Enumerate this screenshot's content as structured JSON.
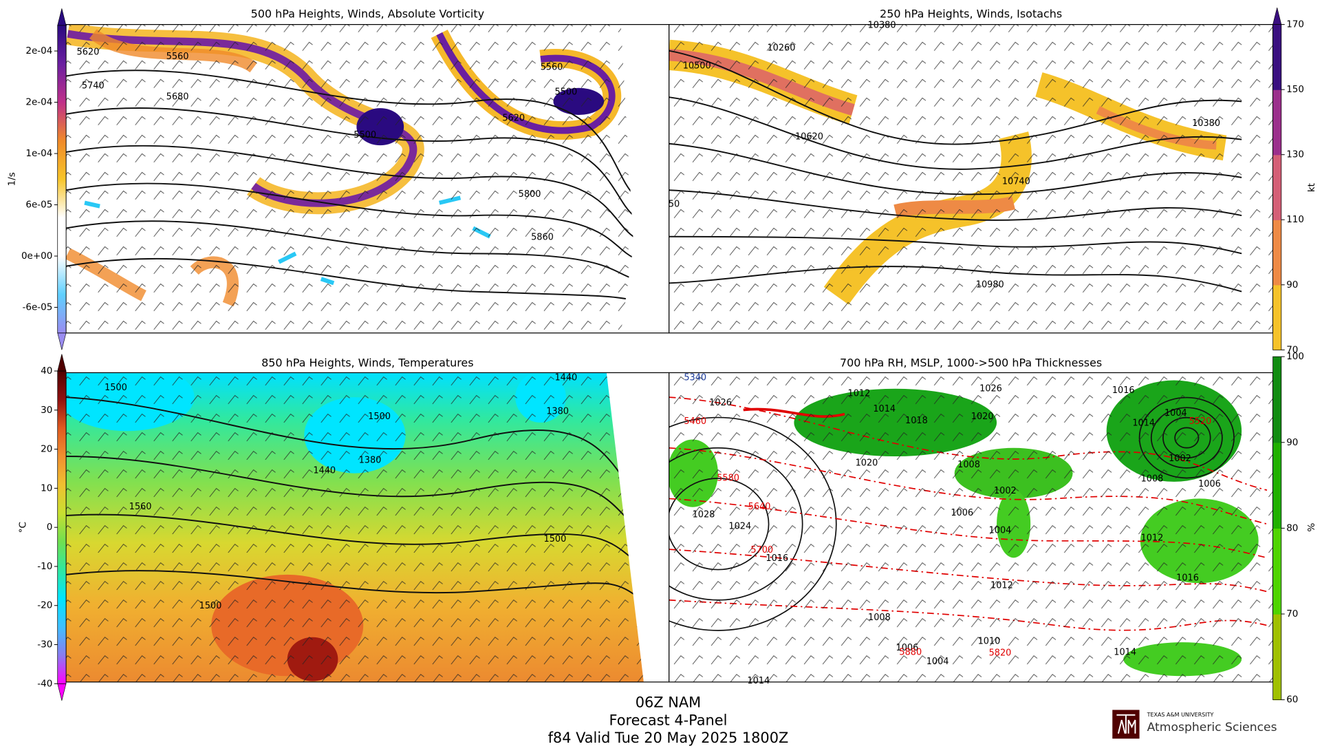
{
  "panels": [
    {
      "title": "500 hPa Heights, Winds, Absolute Vorticity",
      "colorbar": {
        "label": "1/s",
        "lim": [
          -9e-05,
          0.00027
        ],
        "ticks": [
          {
            "value": 0.00024,
            "label": "2e-04"
          },
          {
            "value": 0.00018,
            "label": "2e-04"
          },
          {
            "value": 0.00012,
            "label": "1e-04"
          },
          {
            "value": 6e-05,
            "label": "6e-05"
          },
          {
            "value": 0,
            "label": "0e+00"
          },
          {
            "value": -6e-05,
            "label": "-6e-05"
          }
        ],
        "colors": [
          "#9a8cf0",
          "#5fd0ff",
          "#ffffff",
          "#ffffff",
          "#f7c52a",
          "#f08a2a",
          "#c0308a",
          "#6a1fa0",
          "#2a0a80"
        ],
        "discrete": false,
        "extend": "both"
      },
      "contour_labels": [
        {
          "value": 5620,
          "color": "#000000"
        },
        {
          "value": 5560,
          "color": "#000000"
        },
        {
          "value": 5740,
          "color": "#000000"
        },
        {
          "value": 5680,
          "color": "#000000"
        },
        {
          "value": 5500,
          "color": "#000000"
        },
        {
          "value": 5560,
          "color": "#000000"
        },
        {
          "value": 5500,
          "color": "#000000"
        },
        {
          "value": 5620,
          "color": "#000000"
        },
        {
          "value": 5800,
          "color": "#000000"
        },
        {
          "value": 5860,
          "color": "#000000"
        }
      ]
    },
    {
      "title": "250 hPa Heights, Winds, Isotachs",
      "colorbar": {
        "label": "kt",
        "lim": [
          70,
          170
        ],
        "ticks": [
          70,
          90,
          110,
          130,
          150,
          170
        ],
        "colors": [
          "#f5c22a",
          "#ee8a45",
          "#d45f76",
          "#9b2f8c",
          "#3a0f80"
        ],
        "discrete": true,
        "extend": "max"
      },
      "contour_labels": [
        {
          "value": 10380,
          "color": "#000000"
        },
        {
          "value": 10260,
          "color": "#000000"
        },
        {
          "value": 10500,
          "color": "#000000"
        },
        {
          "value": 10620,
          "color": "#000000"
        },
        {
          "value": 10740,
          "color": "#000000"
        },
        {
          "value": 10380,
          "color": "#000000"
        },
        {
          "value": 10980,
          "color": "#000000"
        },
        {
          "value": 50,
          "color": "#000000"
        }
      ]
    },
    {
      "title": "850 hPa Heights, Winds, Temperatures",
      "colorbar": {
        "label": "°C",
        "lim": [
          -40,
          40
        ],
        "ticks": [
          40,
          30,
          20,
          10,
          0,
          -10,
          -20,
          -30,
          -40
        ],
        "colors": [
          "#ff00ff",
          "#8a7cf0",
          "#40c0ff",
          "#00e5ff",
          "#30e8a0",
          "#70e050",
          "#c8e030",
          "#f0c030",
          "#f09030",
          "#e05a20",
          "#901010",
          "#500000"
        ],
        "discrete": false,
        "extend": "both"
      },
      "contour_labels": [
        {
          "value": 1500,
          "color": "#000000"
        },
        {
          "value": 1440,
          "color": "#000000"
        },
        {
          "value": 1500,
          "color": "#000000"
        },
        {
          "value": 1380,
          "color": "#000000"
        },
        {
          "value": 1440,
          "color": "#000000"
        },
        {
          "value": 1380,
          "color": "#000000"
        },
        {
          "value": 1560,
          "color": "#000000"
        },
        {
          "value": 1500,
          "color": "#000000"
        },
        {
          "value": 1500,
          "color": "#000000"
        }
      ]
    },
    {
      "title": "700 hPa RH, MSLP, 1000->500 hPa Thicknesses",
      "colorbar": {
        "label": "%",
        "lim": [
          60,
          100
        ],
        "ticks": [
          100,
          90,
          80,
          70,
          60
        ],
        "colors": [
          "#a0c000",
          "#4fd400",
          "#20b000",
          "#118c11"
        ],
        "discrete": true,
        "extend": "none"
      },
      "contour_labels": [
        {
          "value": 5340,
          "color": "#1a3a9a"
        },
        {
          "value": 1026,
          "color": "#000000"
        },
        {
          "value": 5460,
          "color": "#e00000"
        },
        {
          "value": 5580,
          "color": "#e00000"
        },
        {
          "value": 5640,
          "color": "#e00000"
        },
        {
          "value": 5700,
          "color": "#e00000"
        },
        {
          "value": 1016,
          "color": "#000000"
        },
        {
          "value": 1024,
          "color": "#000000"
        },
        {
          "value": 1028,
          "color": "#000000"
        },
        {
          "value": 1012,
          "color": "#000000"
        },
        {
          "value": 1014,
          "color": "#000000"
        },
        {
          "value": 1018,
          "color": "#000000"
        },
        {
          "value": 1026,
          "color": "#000000"
        },
        {
          "value": 1020,
          "color": "#000000"
        },
        {
          "value": 1020,
          "color": "#000000"
        },
        {
          "value": 1008,
          "color": "#000000"
        },
        {
          "value": 1002,
          "color": "#000000"
        },
        {
          "value": 1006,
          "color": "#000000"
        },
        {
          "value": 1004,
          "color": "#000000"
        },
        {
          "value": 1016,
          "color": "#000000"
        },
        {
          "value": 1014,
          "color": "#000000"
        },
        {
          "value": 1004,
          "color": "#000000"
        },
        {
          "value": 5520,
          "color": "#e00000"
        },
        {
          "value": 1002,
          "color": "#000000"
        },
        {
          "value": 1008,
          "color": "#000000"
        },
        {
          "value": 1006,
          "color": "#000000"
        },
        {
          "value": 1012,
          "color": "#000000"
        },
        {
          "value": 1016,
          "color": "#000000"
        },
        {
          "value": 1012,
          "color": "#000000"
        },
        {
          "value": 1008,
          "color": "#000000"
        },
        {
          "value": 1006,
          "color": "#000000"
        },
        {
          "value": 5880,
          "color": "#e00000"
        },
        {
          "value": 1004,
          "color": "#000000"
        },
        {
          "value": 1010,
          "color": "#000000"
        },
        {
          "value": 5820,
          "color": "#e00000"
        },
        {
          "value": 1014,
          "color": "#000000"
        },
        {
          "value": 1014,
          "color": "#000000"
        }
      ]
    }
  ],
  "footer": {
    "model": "06Z NAM",
    "product": "Forecast 4-Panel",
    "valid": "f84 Valid Tue 20 May 2025 1800Z"
  },
  "logo": {
    "university": "TEXAS A&M UNIVERSITY",
    "department": "Atmospheric Sciences"
  }
}
